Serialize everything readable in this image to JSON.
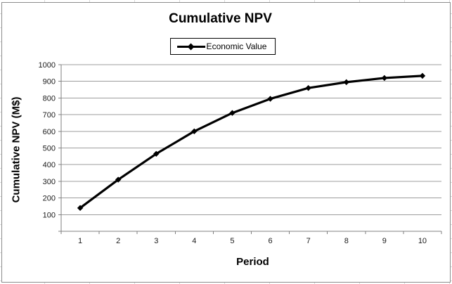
{
  "chart_data": {
    "type": "line",
    "title": "Cumulative NPV",
    "xlabel": "Period",
    "ylabel": "Cumulative NPV (M$)",
    "categories": [
      "1",
      "2",
      "3",
      "4",
      "5",
      "6",
      "7",
      "8",
      "9",
      "10"
    ],
    "series": [
      {
        "name": "Economic Value",
        "values": [
          140,
          310,
          465,
          600,
          710,
          795,
          860,
          895,
          920,
          933
        ],
        "color": "#000000",
        "marker": "diamond"
      }
    ],
    "ylim": [
      0,
      1000
    ],
    "yticks": [
      100,
      200,
      300,
      400,
      500,
      600,
      700,
      800,
      900,
      1000
    ],
    "grid": "horizontal-only",
    "legend_position": "top-center",
    "colors": {
      "gridline": "#9c9c9c",
      "axis": "#808080",
      "tick_label": "#1a1a1a",
      "chart_border": "#8c8c8c",
      "background": "#ffffff"
    }
  }
}
